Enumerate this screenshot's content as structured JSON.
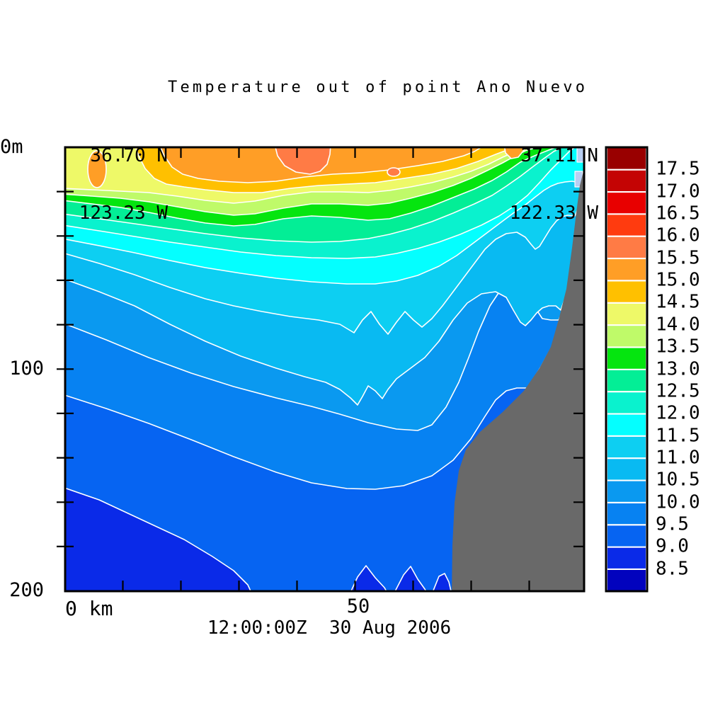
{
  "chart_data": {
    "type": "filled_contour_section",
    "title": "Temperature out of point Ano Nuevo",
    "timestamp": "12:00:00Z  30 Aug 2006",
    "start_point": {
      "lat": "36.70 N",
      "lon": "123.23 W"
    },
    "end_point": {
      "lat": "37.11 N",
      "lon": "122.33 W"
    },
    "x_axis": {
      "tick_labels": [
        "0 km",
        "50"
      ],
      "tick_interval_km": 10,
      "range_km": [
        0,
        88
      ]
    },
    "y_axis": {
      "tick_labels": [
        "0m",
        "100",
        "200"
      ],
      "tick_interval_m": 20,
      "range_m": [
        0,
        200
      ]
    },
    "colorbar": {
      "levels": [
        "17.5",
        "17.0",
        "16.5",
        "16.0",
        "15.5",
        "15.0",
        "14.5",
        "14.0",
        "13.5",
        "13.0",
        "12.5",
        "12.0",
        "11.5",
        "11.0",
        "10.5",
        "10.0",
        "9.5",
        "9.0",
        "8.5"
      ],
      "band_colors": [
        "#990000",
        "#C40404",
        "#E80000",
        "#FF3B0F",
        "#FF7B45",
        "#FF9E26",
        "#FFC000",
        "#EEF968",
        "#BFFA69",
        "#05E50F",
        "#03EE96",
        "#0AF2CE",
        "#04FFFF",
        "#0DCFF2",
        "#09BAF2",
        "#0A99F0",
        "#0782F2",
        "#0664F2",
        "#0A2AE8",
        "#0203BE"
      ]
    },
    "isotherm_depth_at_left_edge_m": {
      "14.0": 18,
      "13.5": 21,
      "13.0": 24,
      "12.5": 30,
      "12.0": 35,
      "11.5": 41,
      "11.0": 47,
      "10.5": 59,
      "10.0": 79,
      "9.5": 111,
      "9.0": 153
    },
    "land_color": "#696969",
    "contour_line_color": "#FFFFFF",
    "frame_color": "#000000",
    "background_color": "#FFFFFF",
    "shallow_gap_color": "#B8CEF2"
  }
}
